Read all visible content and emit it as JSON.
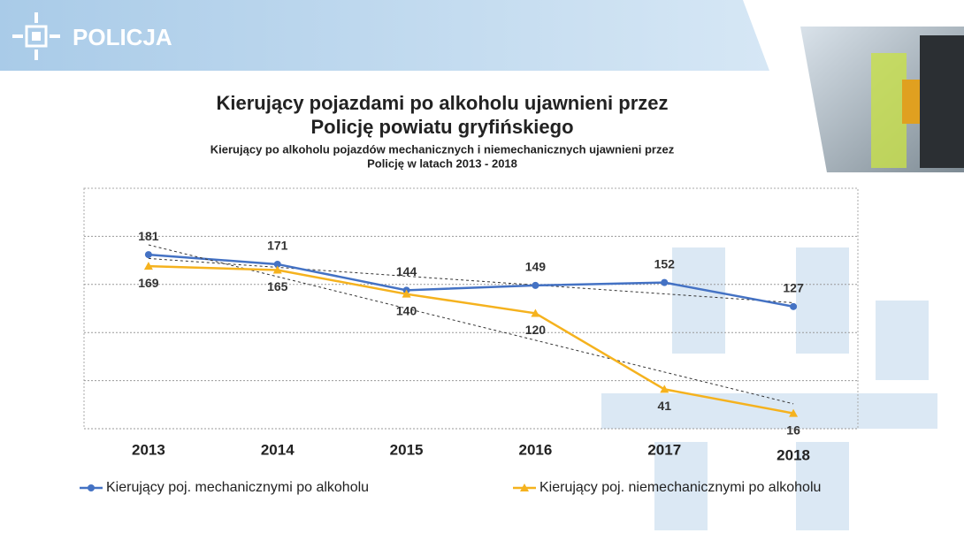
{
  "header": {
    "logo": "POLICJA"
  },
  "chart_data": {
    "type": "line",
    "title": "Kierujący pojazdami po alkoholu ujawnieni przez",
    "title2": "Policję powiatu gryfińskiego",
    "subtitle": "Kierujący po alkoholu pojazdów mechanicznych i niemechanicznych ujawnieni przez",
    "subtitle2": "Policję w latach 2013 - 2018",
    "categories": [
      "2013",
      "2014",
      "2015",
      "2016",
      "2017",
      "2018"
    ],
    "series": [
      {
        "name": "Kierujący poj. mechanicznymi po alkoholu",
        "color": "#4472c4",
        "values": [
          181,
          171,
          144,
          149,
          152,
          127
        ]
      },
      {
        "name": "Kierujący poj. niemechanicznymi po alkoholu",
        "color": "#f5b21e",
        "values": [
          169,
          165,
          140,
          120,
          41,
          16
        ]
      }
    ],
    "ylim": [
      0,
      250
    ],
    "yticks": [
      0,
      50,
      100,
      150,
      200
    ],
    "grid": true,
    "legend": "bottom"
  }
}
